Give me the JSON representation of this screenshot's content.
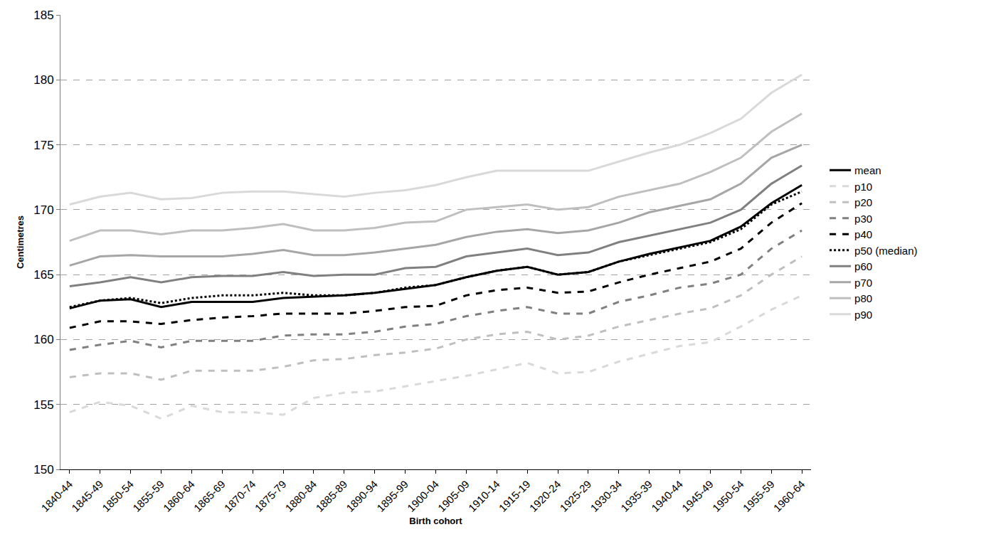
{
  "chart_data": {
    "type": "line",
    "x_label": "Birth cohort",
    "y_label": "Centimetres",
    "categories": [
      "1840-44",
      "1845-49",
      "1850-54",
      "1855-59",
      "1860-64",
      "1865-69",
      "1870-74",
      "1875-79",
      "1880-84",
      "1885-89",
      "1890-94",
      "1895-99",
      "1900-04",
      "1905-09",
      "1910-14",
      "1915-19",
      "1920-24",
      "1925-29",
      "1930-34",
      "1935-39",
      "1940-44",
      "1945-49",
      "1950-54",
      "1955-59",
      "1960-64"
    ],
    "ylim": [
      150,
      185
    ],
    "yticks": [
      150,
      155,
      160,
      165,
      170,
      175,
      180,
      185
    ],
    "grid": true,
    "legend": "right",
    "series": [
      {
        "name": "mean",
        "color": "#000000",
        "line_style": "solid",
        "values": [
          162.4,
          163.0,
          163.1,
          162.5,
          162.9,
          162.9,
          162.9,
          163.2,
          163.3,
          163.4,
          163.6,
          163.9,
          164.2,
          164.8,
          165.3,
          165.6,
          165.0,
          165.2,
          166.0,
          166.6,
          167.1,
          167.6,
          168.7,
          170.5,
          171.9
        ]
      },
      {
        "name": "p10",
        "color": "#d9d9d9",
        "line_style": "dash",
        "values": [
          154.4,
          155.2,
          154.9,
          153.9,
          154.9,
          154.4,
          154.4,
          154.2,
          155.5,
          155.9,
          156.0,
          156.4,
          156.8,
          157.2,
          157.7,
          158.2,
          157.4,
          157.5,
          158.3,
          158.9,
          159.5,
          159.8,
          161.0,
          162.3,
          163.4
        ]
      },
      {
        "name": "p20",
        "color": "#bfbfbf",
        "line_style": "dash",
        "values": [
          157.1,
          157.4,
          157.4,
          156.9,
          157.6,
          157.6,
          157.6,
          157.9,
          158.4,
          158.5,
          158.8,
          159.0,
          159.3,
          160.0,
          160.4,
          160.6,
          160.0,
          160.3,
          161.0,
          161.5,
          162.0,
          162.4,
          163.4,
          165.0,
          166.4
        ]
      },
      {
        "name": "p30",
        "color": "#808080",
        "line_style": "dash",
        "values": [
          159.2,
          159.6,
          159.9,
          159.4,
          159.9,
          159.9,
          159.9,
          160.3,
          160.4,
          160.4,
          160.6,
          161.0,
          161.2,
          161.8,
          162.2,
          162.5,
          162.0,
          162.0,
          162.9,
          163.4,
          164.0,
          164.3,
          165.0,
          167.0,
          168.4
        ]
      },
      {
        "name": "p40",
        "color": "#000000",
        "line_style": "dash",
        "values": [
          160.9,
          161.4,
          161.4,
          161.2,
          161.5,
          161.7,
          161.8,
          162.0,
          162.0,
          162.0,
          162.2,
          162.5,
          162.6,
          163.4,
          163.8,
          164.0,
          163.6,
          163.7,
          164.4,
          165.0,
          165.5,
          166.0,
          167.0,
          169.0,
          170.5
        ]
      },
      {
        "name": "p50 (median)",
        "color": "#000000",
        "line_style": "dot",
        "values": [
          162.5,
          163.0,
          163.2,
          162.8,
          163.2,
          163.4,
          163.4,
          163.6,
          163.4,
          163.4,
          163.6,
          164.0,
          164.2,
          164.8,
          165.3,
          165.6,
          165.0,
          165.2,
          166.0,
          166.5,
          167.0,
          167.5,
          168.5,
          170.4,
          171.4
        ]
      },
      {
        "name": "p60",
        "color": "#808080",
        "line_style": "solid",
        "values": [
          164.1,
          164.4,
          164.8,
          164.4,
          164.8,
          164.9,
          164.9,
          165.2,
          164.9,
          165.0,
          165.0,
          165.5,
          165.6,
          166.4,
          166.7,
          167.0,
          166.5,
          166.7,
          167.5,
          168.0,
          168.5,
          169.0,
          170.0,
          172.0,
          173.4
        ]
      },
      {
        "name": "p70",
        "color": "#a6a6a6",
        "line_style": "solid",
        "values": [
          165.7,
          166.4,
          166.5,
          166.4,
          166.4,
          166.4,
          166.6,
          166.9,
          166.5,
          166.5,
          166.7,
          167.0,
          167.3,
          167.9,
          168.3,
          168.5,
          168.2,
          168.4,
          169.0,
          169.8,
          170.3,
          170.8,
          172.0,
          174.0,
          175.0
        ]
      },
      {
        "name": "p80",
        "color": "#bfbfbf",
        "line_style": "solid",
        "values": [
          167.6,
          168.4,
          168.4,
          168.1,
          168.4,
          168.4,
          168.6,
          168.9,
          168.4,
          168.4,
          168.6,
          169.0,
          169.1,
          170.0,
          170.2,
          170.4,
          170.0,
          170.2,
          171.0,
          171.5,
          172.0,
          172.9,
          174.0,
          176.0,
          177.4
        ]
      },
      {
        "name": "p90",
        "color": "#d9d9d9",
        "line_style": "solid",
        "values": [
          170.4,
          171.0,
          171.3,
          170.8,
          170.9,
          171.3,
          171.4,
          171.4,
          171.2,
          171.0,
          171.3,
          171.5,
          171.9,
          172.5,
          173.0,
          173.0,
          173.0,
          173.0,
          173.7,
          174.4,
          175.0,
          175.9,
          177.0,
          179.0,
          180.4
        ]
      }
    ]
  }
}
